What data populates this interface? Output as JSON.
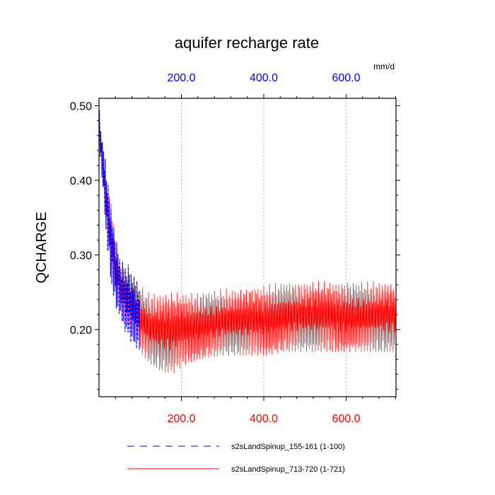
{
  "chart_data": {
    "type": "line",
    "title": "aquifer recharge rate",
    "units": "mm/d",
    "ylabel": "QCHARGE",
    "xlabel": "",
    "xlim": [
      0,
      721
    ],
    "ylim": [
      0.11,
      0.51
    ],
    "yticks": [
      0.2,
      0.3,
      0.4,
      0.5
    ],
    "ytick_labels": [
      "0.20",
      "0.30",
      "0.40",
      "0.50"
    ],
    "top_xticks": [
      200,
      400,
      600
    ],
    "top_xtick_labels": [
      "200.0",
      "400.0",
      "600.0"
    ],
    "bottom_xticks": [
      200,
      400,
      600
    ],
    "bottom_xtick_labels": [
      "200.0",
      "400.0",
      "600.0"
    ],
    "grid": "dotted vertical at 200, 400, 600",
    "series": [
      {
        "name": "s2sLandSpinup_713-720 (1-721)",
        "color": "#ff0000",
        "style": "solid",
        "points": 721,
        "envelope_x": [
          0,
          5,
          10,
          20,
          30,
          40,
          50,
          60,
          80,
          100,
          120,
          150,
          180,
          200,
          240,
          300,
          350,
          400,
          450,
          500,
          550,
          600,
          650,
          700,
          721
        ],
        "envelope_min": [
          0.44,
          0.42,
          0.38,
          0.31,
          0.27,
          0.24,
          0.22,
          0.21,
          0.19,
          0.17,
          0.155,
          0.145,
          0.14,
          0.15,
          0.16,
          0.165,
          0.165,
          0.165,
          0.17,
          0.17,
          0.17,
          0.17,
          0.17,
          0.17,
          0.17
        ],
        "envelope_max": [
          0.5,
          0.47,
          0.45,
          0.41,
          0.37,
          0.33,
          0.3,
          0.29,
          0.28,
          0.26,
          0.25,
          0.25,
          0.25,
          0.25,
          0.25,
          0.255,
          0.255,
          0.26,
          0.265,
          0.265,
          0.265,
          0.265,
          0.265,
          0.265,
          0.26
        ]
      },
      {
        "name": "s2sLandSpinup_155-161 (1-100)",
        "color": "#0000ff",
        "style": "dashed",
        "points": 100,
        "envelope_x": [
          0,
          5,
          10,
          20,
          30,
          40,
          50,
          60,
          70,
          80,
          90,
          100
        ],
        "envelope_min": [
          0.44,
          0.42,
          0.38,
          0.31,
          0.26,
          0.23,
          0.22,
          0.2,
          0.19,
          0.18,
          0.175,
          0.17
        ],
        "envelope_max": [
          0.5,
          0.47,
          0.45,
          0.41,
          0.36,
          0.33,
          0.3,
          0.29,
          0.29,
          0.28,
          0.27,
          0.26
        ]
      }
    ],
    "legend": [
      {
        "label": "s2sLandSpinup_155-161 (1-100)",
        "color": "#0000ff",
        "style": "dashed"
      },
      {
        "label": "s2sLandSpinup_713-720 (1-721)",
        "color": "#ff0000",
        "style": "solid"
      }
    ]
  }
}
